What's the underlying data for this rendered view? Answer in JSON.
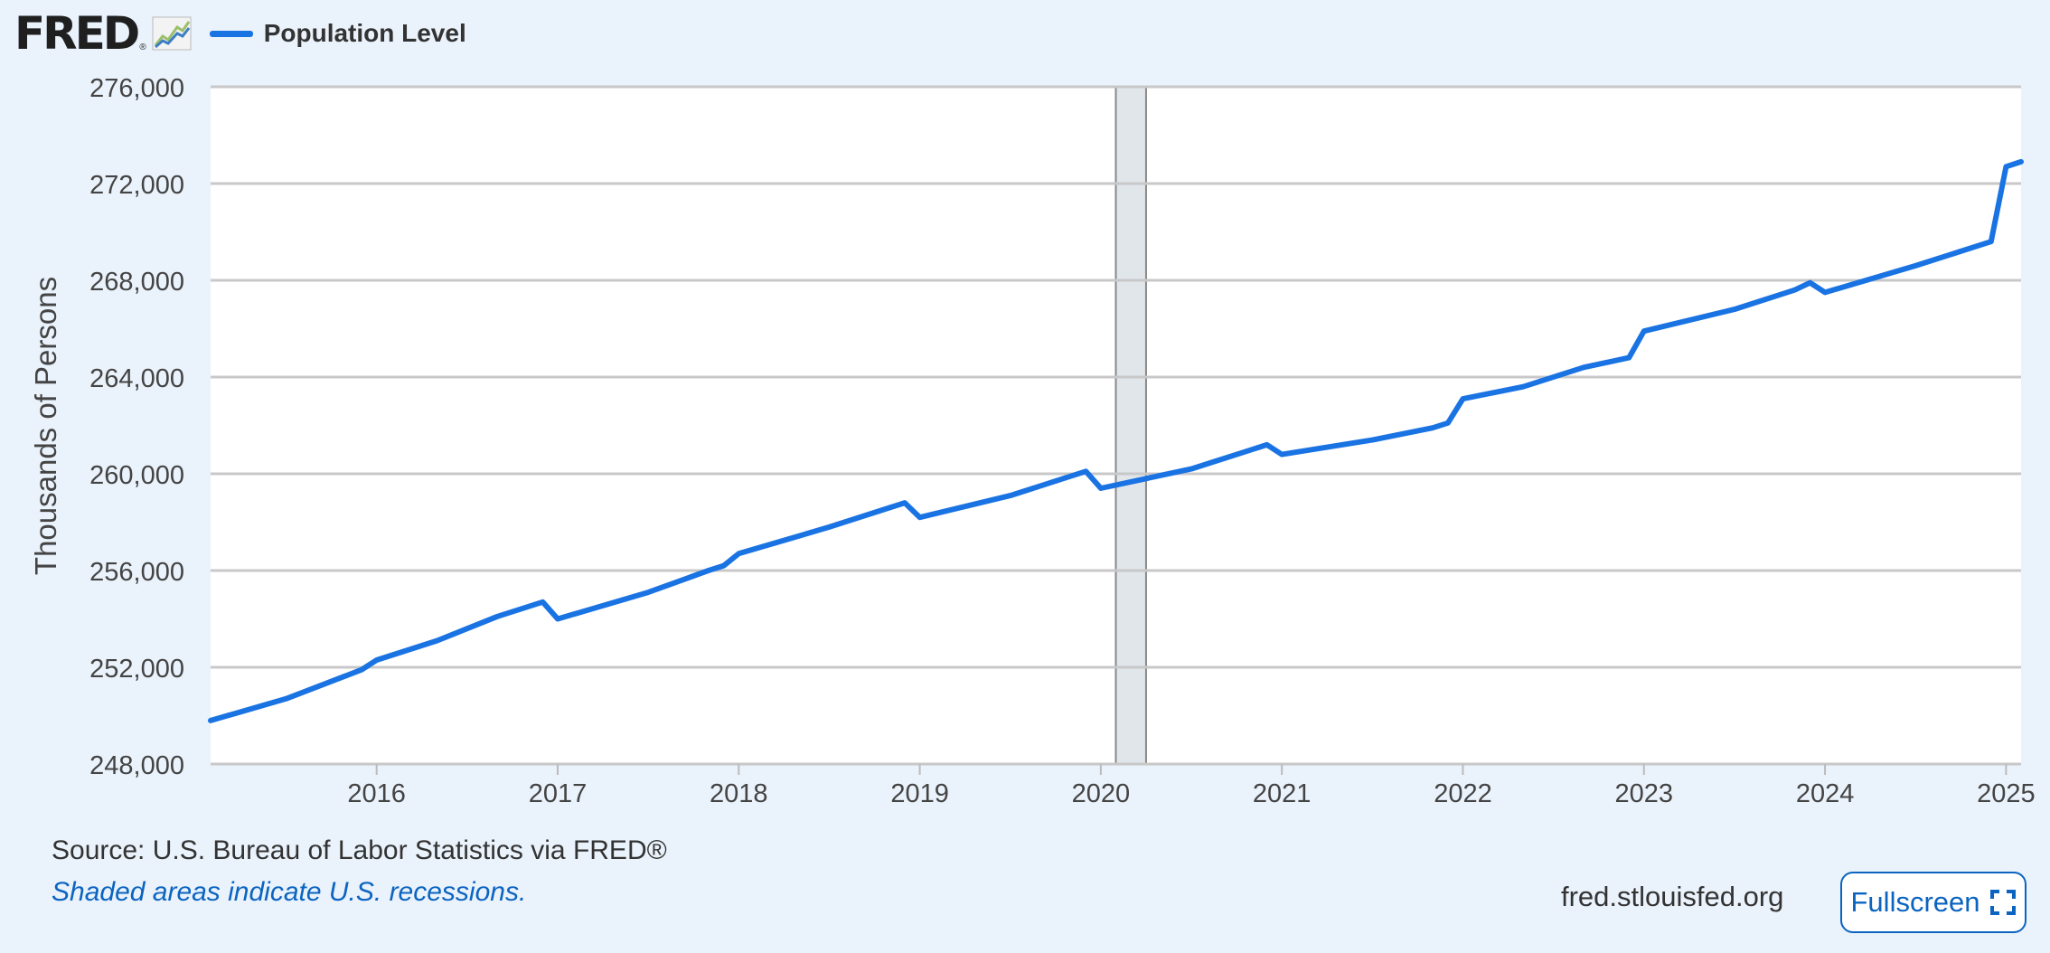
{
  "brand": {
    "name": "FRED",
    "reg_mark": "®",
    "icon": "line-chart-logo-icon"
  },
  "legend": {
    "label": "Population Level",
    "color": "#1a73e3"
  },
  "footer": {
    "source": "Source: U.S. Bureau of Labor Statistics via FRED®",
    "note": "Shaded areas indicate U.S. recessions.",
    "url": "fred.stlouisfed.org",
    "fullscreen_label": "Fullscreen",
    "fullscreen_icon": "fullscreen-icon"
  },
  "chart_data": {
    "type": "line",
    "title": "",
    "xlabel": "",
    "ylabel": "Thousands of Persons",
    "ylim": [
      248000,
      276000
    ],
    "xlim": [
      2015.083,
      2025.083
    ],
    "yticks": [
      248000,
      252000,
      256000,
      260000,
      264000,
      268000,
      272000,
      276000
    ],
    "ytick_labels": [
      "248,000",
      "252,000",
      "256,000",
      "260,000",
      "264,000",
      "268,000",
      "272,000",
      "276,000"
    ],
    "xticks": [
      2016,
      2017,
      2018,
      2019,
      2020,
      2021,
      2022,
      2023,
      2024,
      2025
    ],
    "xtick_labels": [
      "2016",
      "2017",
      "2018",
      "2019",
      "2020",
      "2021",
      "2022",
      "2023",
      "2024",
      "2025"
    ],
    "grid": true,
    "recessions": [
      {
        "start": 2020.083,
        "end": 2020.25
      }
    ],
    "series": [
      {
        "color": "#1a73e3",
        "points": [
          [
            2015.083,
            249800
          ],
          [
            2015.5,
            250700
          ],
          [
            2015.917,
            251900
          ],
          [
            2016.0,
            252300
          ],
          [
            2016.333,
            253100
          ],
          [
            2016.667,
            254100
          ],
          [
            2016.917,
            254700
          ],
          [
            2017.0,
            254000
          ],
          [
            2017.5,
            255100
          ],
          [
            2017.833,
            256000
          ],
          [
            2017.917,
            256200
          ],
          [
            2018.0,
            256700
          ],
          [
            2018.5,
            257800
          ],
          [
            2018.833,
            258600
          ],
          [
            2018.917,
            258800
          ],
          [
            2019.0,
            258200
          ],
          [
            2019.5,
            259100
          ],
          [
            2019.833,
            259900
          ],
          [
            2019.917,
            260100
          ],
          [
            2020.0,
            259400
          ],
          [
            2020.5,
            260200
          ],
          [
            2020.833,
            261000
          ],
          [
            2020.917,
            261200
          ],
          [
            2021.0,
            260800
          ],
          [
            2021.5,
            261400
          ],
          [
            2021.833,
            261900
          ],
          [
            2021.917,
            262100
          ],
          [
            2022.0,
            263100
          ],
          [
            2022.333,
            263600
          ],
          [
            2022.667,
            264400
          ],
          [
            2022.917,
            264800
          ],
          [
            2023.0,
            265900
          ],
          [
            2023.5,
            266800
          ],
          [
            2023.833,
            267600
          ],
          [
            2023.917,
            267900
          ],
          [
            2024.0,
            267500
          ],
          [
            2024.5,
            268600
          ],
          [
            2024.75,
            269200
          ],
          [
            2024.917,
            269600
          ],
          [
            2025.0,
            272700
          ],
          [
            2025.083,
            272900
          ]
        ]
      }
    ]
  }
}
